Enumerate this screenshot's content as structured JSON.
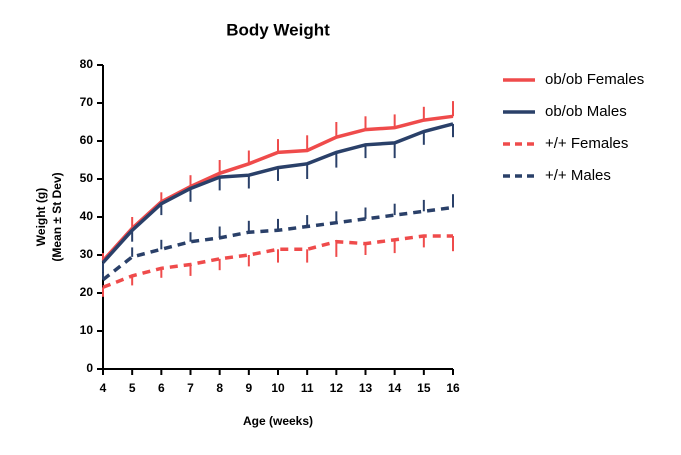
{
  "chart_data": {
    "type": "line",
    "title": "Body Weight",
    "x_label": "Age (weeks)",
    "y_label": [
      "Weight (g)",
      "(Mean ± St Dev)"
    ],
    "x": [
      4,
      5,
      6,
      7,
      8,
      9,
      10,
      11,
      12,
      13,
      14,
      15,
      16
    ],
    "xlim": [
      4,
      16
    ],
    "xticks": [
      4,
      5,
      6,
      7,
      8,
      9,
      10,
      11,
      12,
      13,
      14,
      15,
      16
    ],
    "ylim": [
      0,
      80
    ],
    "yticks": [
      0,
      10,
      20,
      30,
      40,
      50,
      60,
      70,
      80
    ],
    "series": [
      {
        "name": "ob/ob Females",
        "color": "#ef4b4b",
        "dashed": false,
        "error_side": "up",
        "values": [
          28.5,
          37,
          44,
          48,
          51.5,
          54,
          57,
          57.5,
          61,
          63,
          63.5,
          65.5,
          66.5
        ],
        "errors": [
          2,
          3,
          2.5,
          3,
          3.5,
          3.5,
          3.5,
          4,
          4,
          3.5,
          3.5,
          3.5,
          4
        ]
      },
      {
        "name": "ob/ob Males",
        "color": "#2a4069",
        "dashed": false,
        "error_side": "down",
        "values": [
          28,
          36.5,
          43.5,
          47.5,
          50.5,
          51,
          53,
          54,
          57,
          59,
          59.5,
          62.5,
          64.5
        ],
        "errors": [
          2.5,
          3,
          3,
          3.5,
          3.5,
          3.5,
          3.5,
          4,
          4,
          3.5,
          4,
          3.5,
          3.5
        ]
      },
      {
        "name": "+/+ Females",
        "color": "#ef4b4b",
        "dashed": true,
        "error_side": "down",
        "values": [
          21.5,
          24.5,
          26.5,
          27.5,
          29,
          30,
          31.5,
          31.5,
          33.5,
          33,
          34,
          35,
          35
        ],
        "errors": [
          2.5,
          2.5,
          2.5,
          3,
          3,
          3,
          3.5,
          3.5,
          4,
          3,
          3.5,
          3,
          4
        ]
      },
      {
        "name": "+/+ Males",
        "color": "#2a4069",
        "dashed": true,
        "error_side": "up",
        "values": [
          23.5,
          29.5,
          31.5,
          33.5,
          34.5,
          36,
          36.5,
          37.5,
          38.5,
          39.5,
          40.5,
          41.5,
          42.5
        ],
        "errors": [
          2,
          2.5,
          2.5,
          2.5,
          3,
          3,
          3,
          3,
          3,
          3,
          3,
          3,
          3.5
        ]
      }
    ]
  }
}
